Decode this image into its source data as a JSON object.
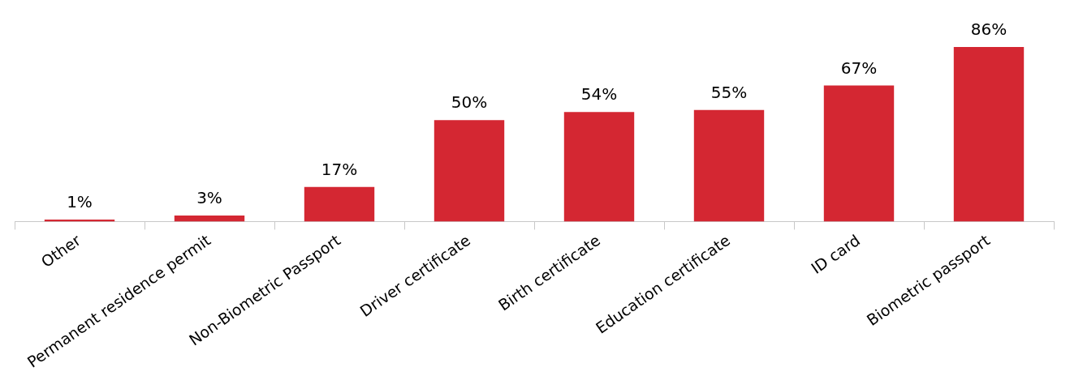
{
  "chart_data": {
    "type": "bar",
    "categories": [
      "Other",
      "Permanent residence permit",
      "Non-Biometric Passport",
      "Driver certificate",
      "Birth certificate",
      "Education certificate",
      "ID card",
      "Biometric passport"
    ],
    "values": [
      1,
      3,
      17,
      50,
      54,
      55,
      67,
      86
    ],
    "value_labels": [
      "1%",
      "3%",
      "17%",
      "50%",
      "54%",
      "55%",
      "67%",
      "86%"
    ],
    "color": "#d42732"
  }
}
